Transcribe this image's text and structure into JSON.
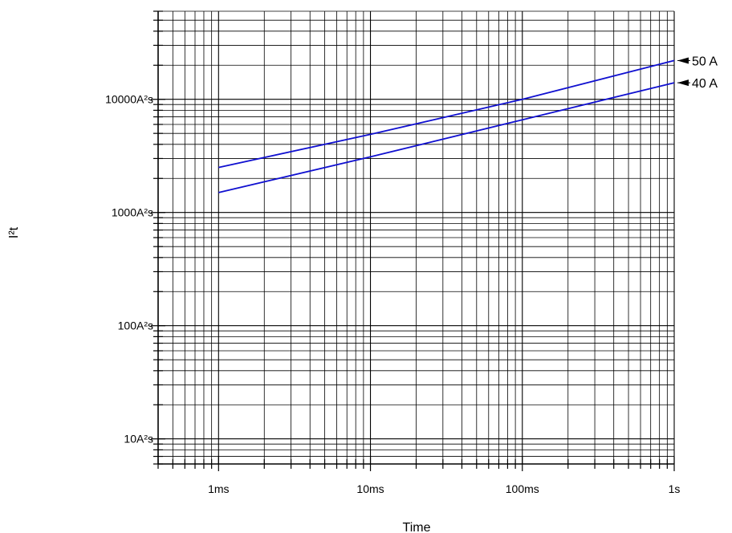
{
  "chart_data": {
    "type": "line",
    "xscale": "log",
    "yscale": "log",
    "xlabel": "Time",
    "ylabel": "I²t",
    "xlim": [
      0.0004,
      1
    ],
    "ylim": [
      6,
      60000
    ],
    "grid": true,
    "x_ticks": [
      {
        "value": 0.001,
        "label": "1ms"
      },
      {
        "value": 0.01,
        "label": "10ms"
      },
      {
        "value": 0.1,
        "label": "100ms"
      },
      {
        "value": 1,
        "label": "1s"
      }
    ],
    "y_ticks": [
      {
        "value": 10,
        "label": "10A²s"
      },
      {
        "value": 100,
        "label": "100A²s"
      },
      {
        "value": 1000,
        "label": "1000A²s"
      },
      {
        "value": 10000,
        "label": "10000A²s"
      }
    ],
    "series": [
      {
        "name": "50 A",
        "color": "#1010d0",
        "x": [
          0.001,
          0.01,
          0.1,
          1
        ],
        "y": [
          2500,
          4900,
          10000,
          22000
        ]
      },
      {
        "name": "40 A",
        "color": "#1010d0",
        "x": [
          0.001,
          0.01,
          0.1,
          1
        ],
        "y": [
          1500,
          3100,
          6600,
          14000
        ]
      }
    ]
  }
}
